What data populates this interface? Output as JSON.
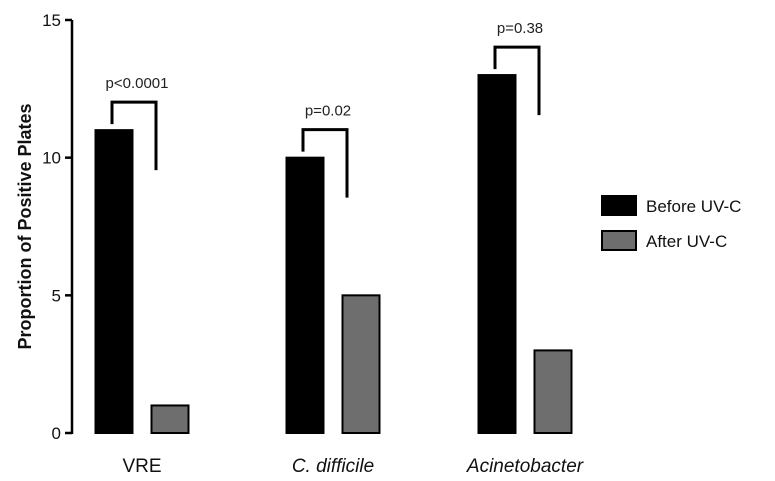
{
  "chart_data": {
    "type": "bar",
    "categories": [
      "VRE",
      "C. difficile",
      "Acinetobacter"
    ],
    "category_italic": [
      false,
      true,
      true
    ],
    "series": [
      {
        "name": "Before UV-C",
        "values": [
          11,
          10,
          13
        ],
        "color": "#000000"
      },
      {
        "name": "After UV-C",
        "values": [
          1,
          5,
          3
        ],
        "color": "#6e6e6e"
      }
    ],
    "annotations": [
      "p<0.0001",
      "p=0.02",
      "p=0.38"
    ],
    "ylabel": "Proportion of Positive Plates",
    "xlabel": "",
    "title": "",
    "ylim": [
      0,
      15
    ],
    "yticks": [
      0,
      5,
      10,
      15
    ],
    "grid": false,
    "legend_position": "right"
  }
}
